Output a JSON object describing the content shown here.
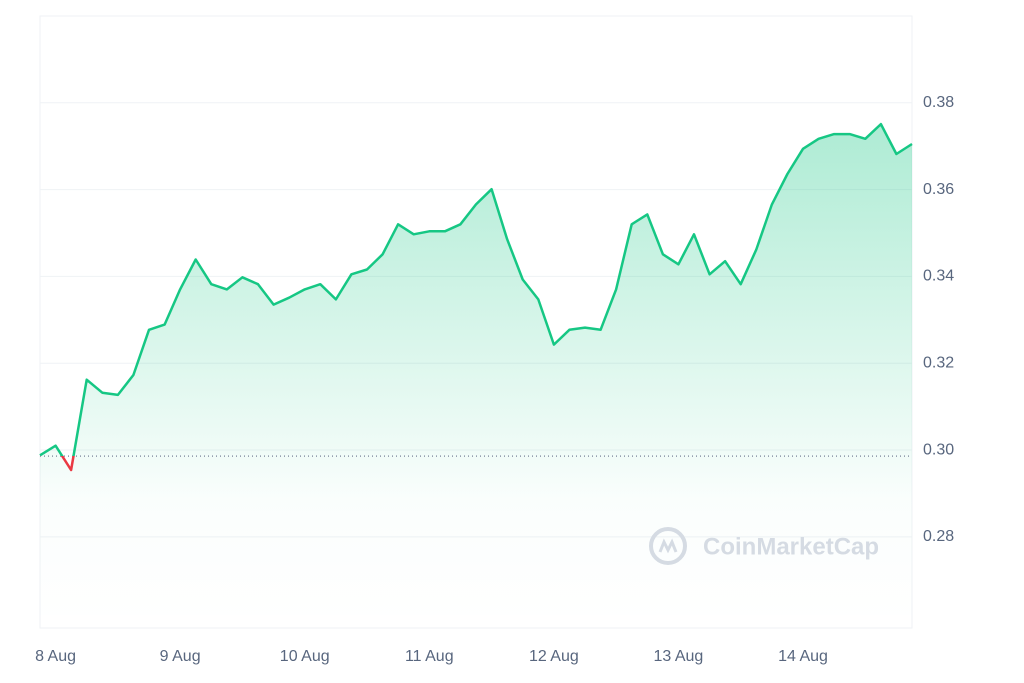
{
  "chart_data": {
    "type": "line",
    "categories": [
      null,
      "8 Aug",
      null,
      null,
      null,
      null,
      null,
      null,
      null,
      "9 Aug",
      null,
      null,
      null,
      null,
      null,
      null,
      null,
      "10 Aug",
      null,
      null,
      null,
      null,
      null,
      null,
      null,
      "11 Aug",
      null,
      null,
      null,
      null,
      null,
      null,
      null,
      "12 Aug",
      null,
      null,
      null,
      null,
      null,
      null,
      null,
      "13 Aug",
      null,
      null,
      null,
      null,
      null,
      null,
      null,
      "14 Aug",
      null,
      null,
      null,
      null,
      null,
      null,
      null
    ],
    "values": [
      0.2988,
      0.301,
      0.2954,
      0.3162,
      0.3132,
      0.3127,
      0.3173,
      0.3277,
      0.3289,
      0.337,
      0.3439,
      0.3382,
      0.337,
      0.3398,
      0.3382,
      0.3335,
      0.3351,
      0.337,
      0.3382,
      0.3347,
      0.3405,
      0.3416,
      0.3451,
      0.352,
      0.3497,
      0.3504,
      0.3504,
      0.352,
      0.3566,
      0.3601,
      0.3486,
      0.3393,
      0.3347,
      0.3243,
      0.3277,
      0.3282,
      0.3277,
      0.337,
      0.352,
      0.3543,
      0.3451,
      0.3428,
      0.3497,
      0.3405,
      0.3435,
      0.3382,
      0.3462,
      0.3566,
      0.3636,
      0.3694,
      0.3717,
      0.3728,
      0.3728,
      0.3717,
      0.3751,
      0.3682,
      0.3705
    ],
    "baseline": 0.2986,
    "color": "#16c784",
    "down_color": "#ea3943",
    "ylim": [
      0.259,
      0.4
    ],
    "yticks": [
      0.28,
      {
        "value": 0.3,
        "label": "0.30"
      },
      0.32,
      0.34,
      0.36,
      0.38
    ],
    "grid": true,
    "watermark": "CoinMarketCap"
  }
}
